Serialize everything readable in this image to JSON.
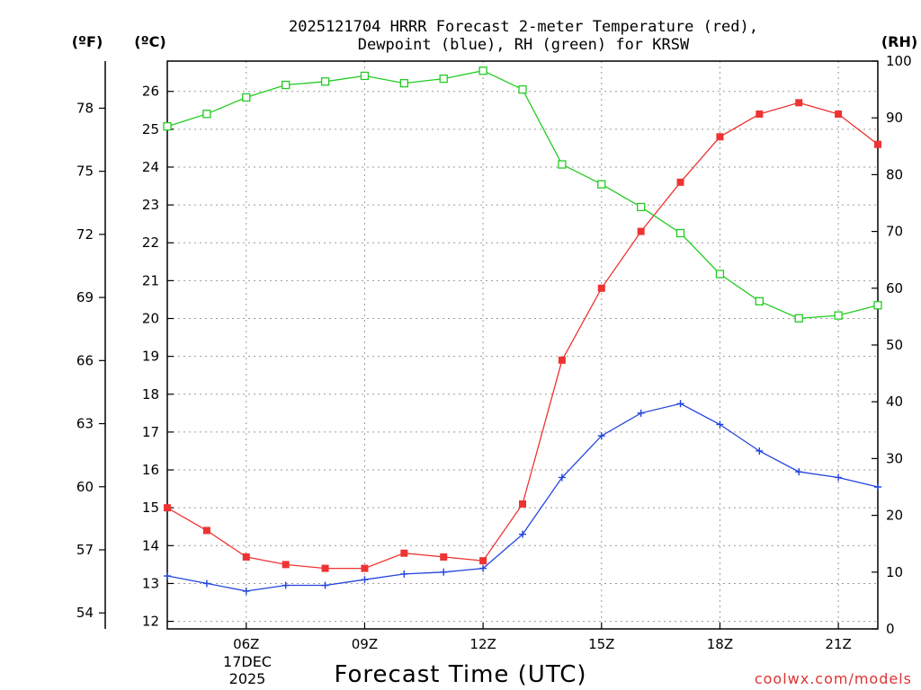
{
  "chart_data": {
    "type": "line",
    "title_line1": "2025121704 HRRR Forecast 2-meter Temperature (red),",
    "title_line2": "Dewpoint (blue), RH (green) for KRSW",
    "xlabel": "Forecast Time (UTC)",
    "watermark": "coolwx.com/models",
    "date_label": {
      "line1": "17DEC",
      "line2": "2025"
    },
    "x_ticks": [
      {
        "h": 6,
        "label": "06Z"
      },
      {
        "h": 9,
        "label": "09Z"
      },
      {
        "h": 12,
        "label": "12Z"
      },
      {
        "h": 15,
        "label": "15Z"
      },
      {
        "h": 18,
        "label": "18Z"
      },
      {
        "h": 21,
        "label": "21Z"
      }
    ],
    "xlim": [
      4,
      22
    ],
    "hours": [
      4,
      5,
      6,
      7,
      8,
      9,
      10,
      11,
      12,
      13,
      14,
      15,
      16,
      17,
      18,
      19,
      20,
      21,
      22
    ],
    "axes": {
      "celsius": {
        "unit": "(ºC)",
        "range": [
          11.8,
          26.8
        ],
        "ticks": [
          12,
          13,
          14,
          15,
          16,
          17,
          18,
          19,
          20,
          21,
          22,
          23,
          24,
          25,
          26
        ]
      },
      "fahrenheit": {
        "unit": "(ºF)",
        "range": [
          53.24,
          80.24
        ],
        "ticks": [
          54,
          57,
          60,
          63,
          66,
          69,
          72,
          75,
          78
        ]
      },
      "rh": {
        "unit": "(RH)",
        "range": [
          0,
          100
        ],
        "ticks": [
          0,
          10,
          20,
          30,
          40,
          50,
          60,
          70,
          80,
          90,
          100
        ]
      }
    },
    "grid": true,
    "series": [
      {
        "name": "Temperature",
        "axis": "celsius",
        "color": "#ee3333",
        "marker": "filled-square",
        "values": [
          15.0,
          14.4,
          13.7,
          13.5,
          13.4,
          13.4,
          13.8,
          13.7,
          13.6,
          15.1,
          18.9,
          20.8,
          22.3,
          23.6,
          24.8,
          25.4,
          25.7,
          25.4,
          24.6
        ]
      },
      {
        "name": "Dewpoint",
        "axis": "celsius",
        "color": "#2244dd",
        "marker": "plus",
        "values": [
          13.2,
          13.0,
          12.8,
          12.95,
          12.95,
          13.1,
          13.25,
          13.3,
          13.4,
          14.3,
          15.8,
          16.9,
          17.5,
          17.75,
          17.2,
          16.5,
          15.95,
          15.8,
          15.55
        ]
      },
      {
        "name": "Relative Humidity",
        "axis": "rh",
        "color": "#22cc22",
        "marker": "open-square",
        "values": [
          88.5,
          90.7,
          93.6,
          95.8,
          96.4,
          97.4,
          96.1,
          96.9,
          98.3,
          95.0,
          81.8,
          78.3,
          74.3,
          69.7,
          62.5,
          57.7,
          54.7,
          55.2,
          57.0
        ]
      }
    ]
  }
}
